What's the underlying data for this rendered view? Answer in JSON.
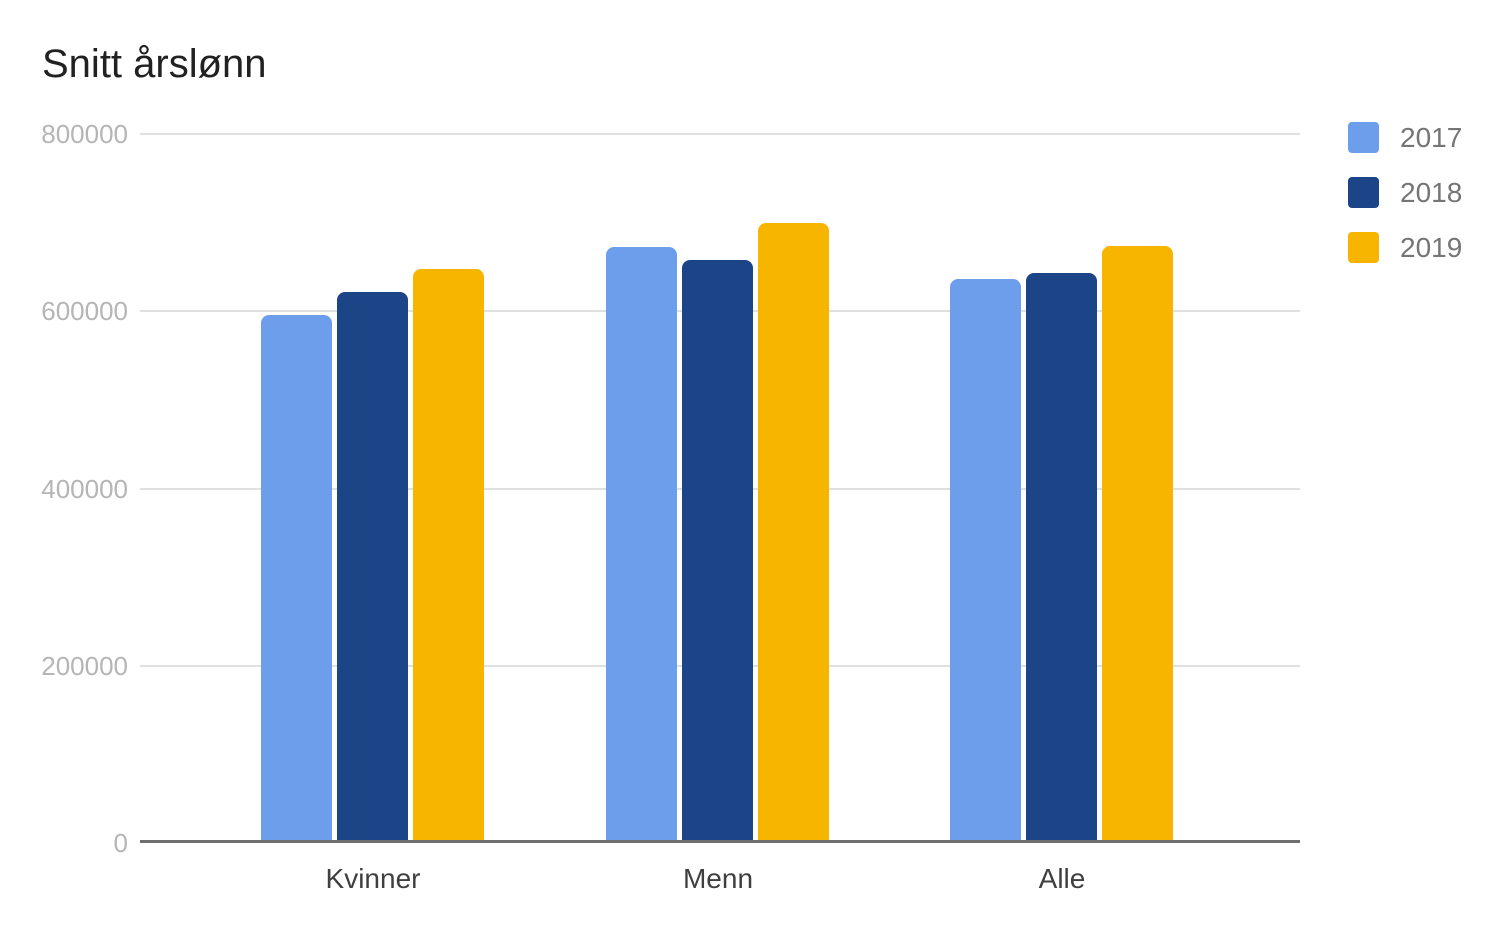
{
  "colors": {
    "background": "#ffffff",
    "title_text": "#212121",
    "tick_label": "#b5b5b5",
    "category_label": "#3f3f3f",
    "legend_text": "#757575",
    "gridline": "#e0e0e0",
    "axis_line": "#6f6f6f",
    "series_2017": "#6d9eeb",
    "series_2018": "#1c4587",
    "series_2019": "#f7b500"
  },
  "legend": {
    "position": "right",
    "items": [
      {
        "label": "2017",
        "color": "#6d9eeb"
      },
      {
        "label": "2018",
        "color": "#1c4587"
      },
      {
        "label": "2019",
        "color": "#f7b500"
      }
    ]
  },
  "chart_data": {
    "type": "bar",
    "title": "Snitt årslønn",
    "categories": [
      "Kvinner",
      "Menn",
      "Alle"
    ],
    "series": [
      {
        "name": "2017",
        "color": "#6d9eeb",
        "values": [
          596000,
          672000,
          636000
        ]
      },
      {
        "name": "2018",
        "color": "#1c4587",
        "values": [
          622000,
          658000,
          643000
        ]
      },
      {
        "name": "2019",
        "color": "#f7b500",
        "values": [
          648000,
          700000,
          674000
        ]
      }
    ],
    "xlabel": "",
    "ylabel": "",
    "ylim": [
      0,
      800000
    ],
    "yticks": [
      0,
      200000,
      400000,
      600000,
      800000
    ],
    "grid": true,
    "legend_position": "right"
  }
}
